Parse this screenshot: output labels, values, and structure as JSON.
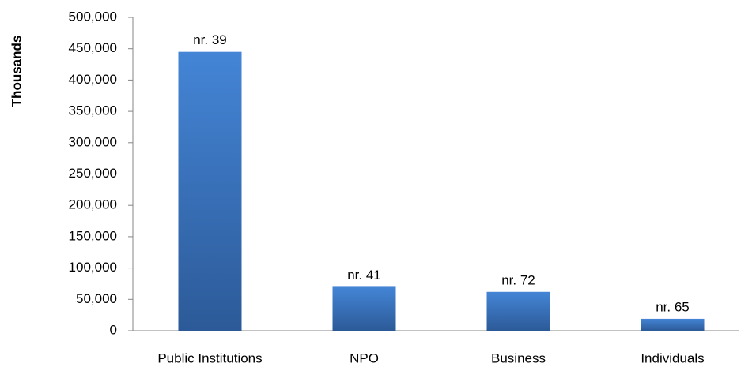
{
  "chart_data": {
    "type": "bar",
    "y_label": "Thousands",
    "categories": [
      "Public Institutions",
      "NPO",
      "Business",
      "Individuals"
    ],
    "values": [
      445000,
      70000,
      62000,
      19000
    ],
    "bar_labels": [
      "nr. 39",
      "nr. 41",
      "nr. 72",
      "nr. 65"
    ],
    "color": "#3a73c0",
    "ylim": [
      0,
      500000
    ],
    "yticks": [
      0,
      {
        "value": 50000,
        "label": "50,000"
      },
      {
        "value": 100000,
        "label": "100,000"
      },
      {
        "value": 150000,
        "label": "150,000"
      },
      {
        "value": 200000,
        "label": "200,000"
      },
      {
        "value": 250000,
        "label": "250,000"
      },
      {
        "value": 300000,
        "label": "300,000"
      },
      {
        "value": 350000,
        "label": "350,000"
      },
      {
        "value": 400000,
        "label": "400,000"
      },
      {
        "value": 450000,
        "label": "450,000"
      },
      {
        "value": 500000,
        "label": "500,000"
      }
    ],
    "grid": false
  }
}
